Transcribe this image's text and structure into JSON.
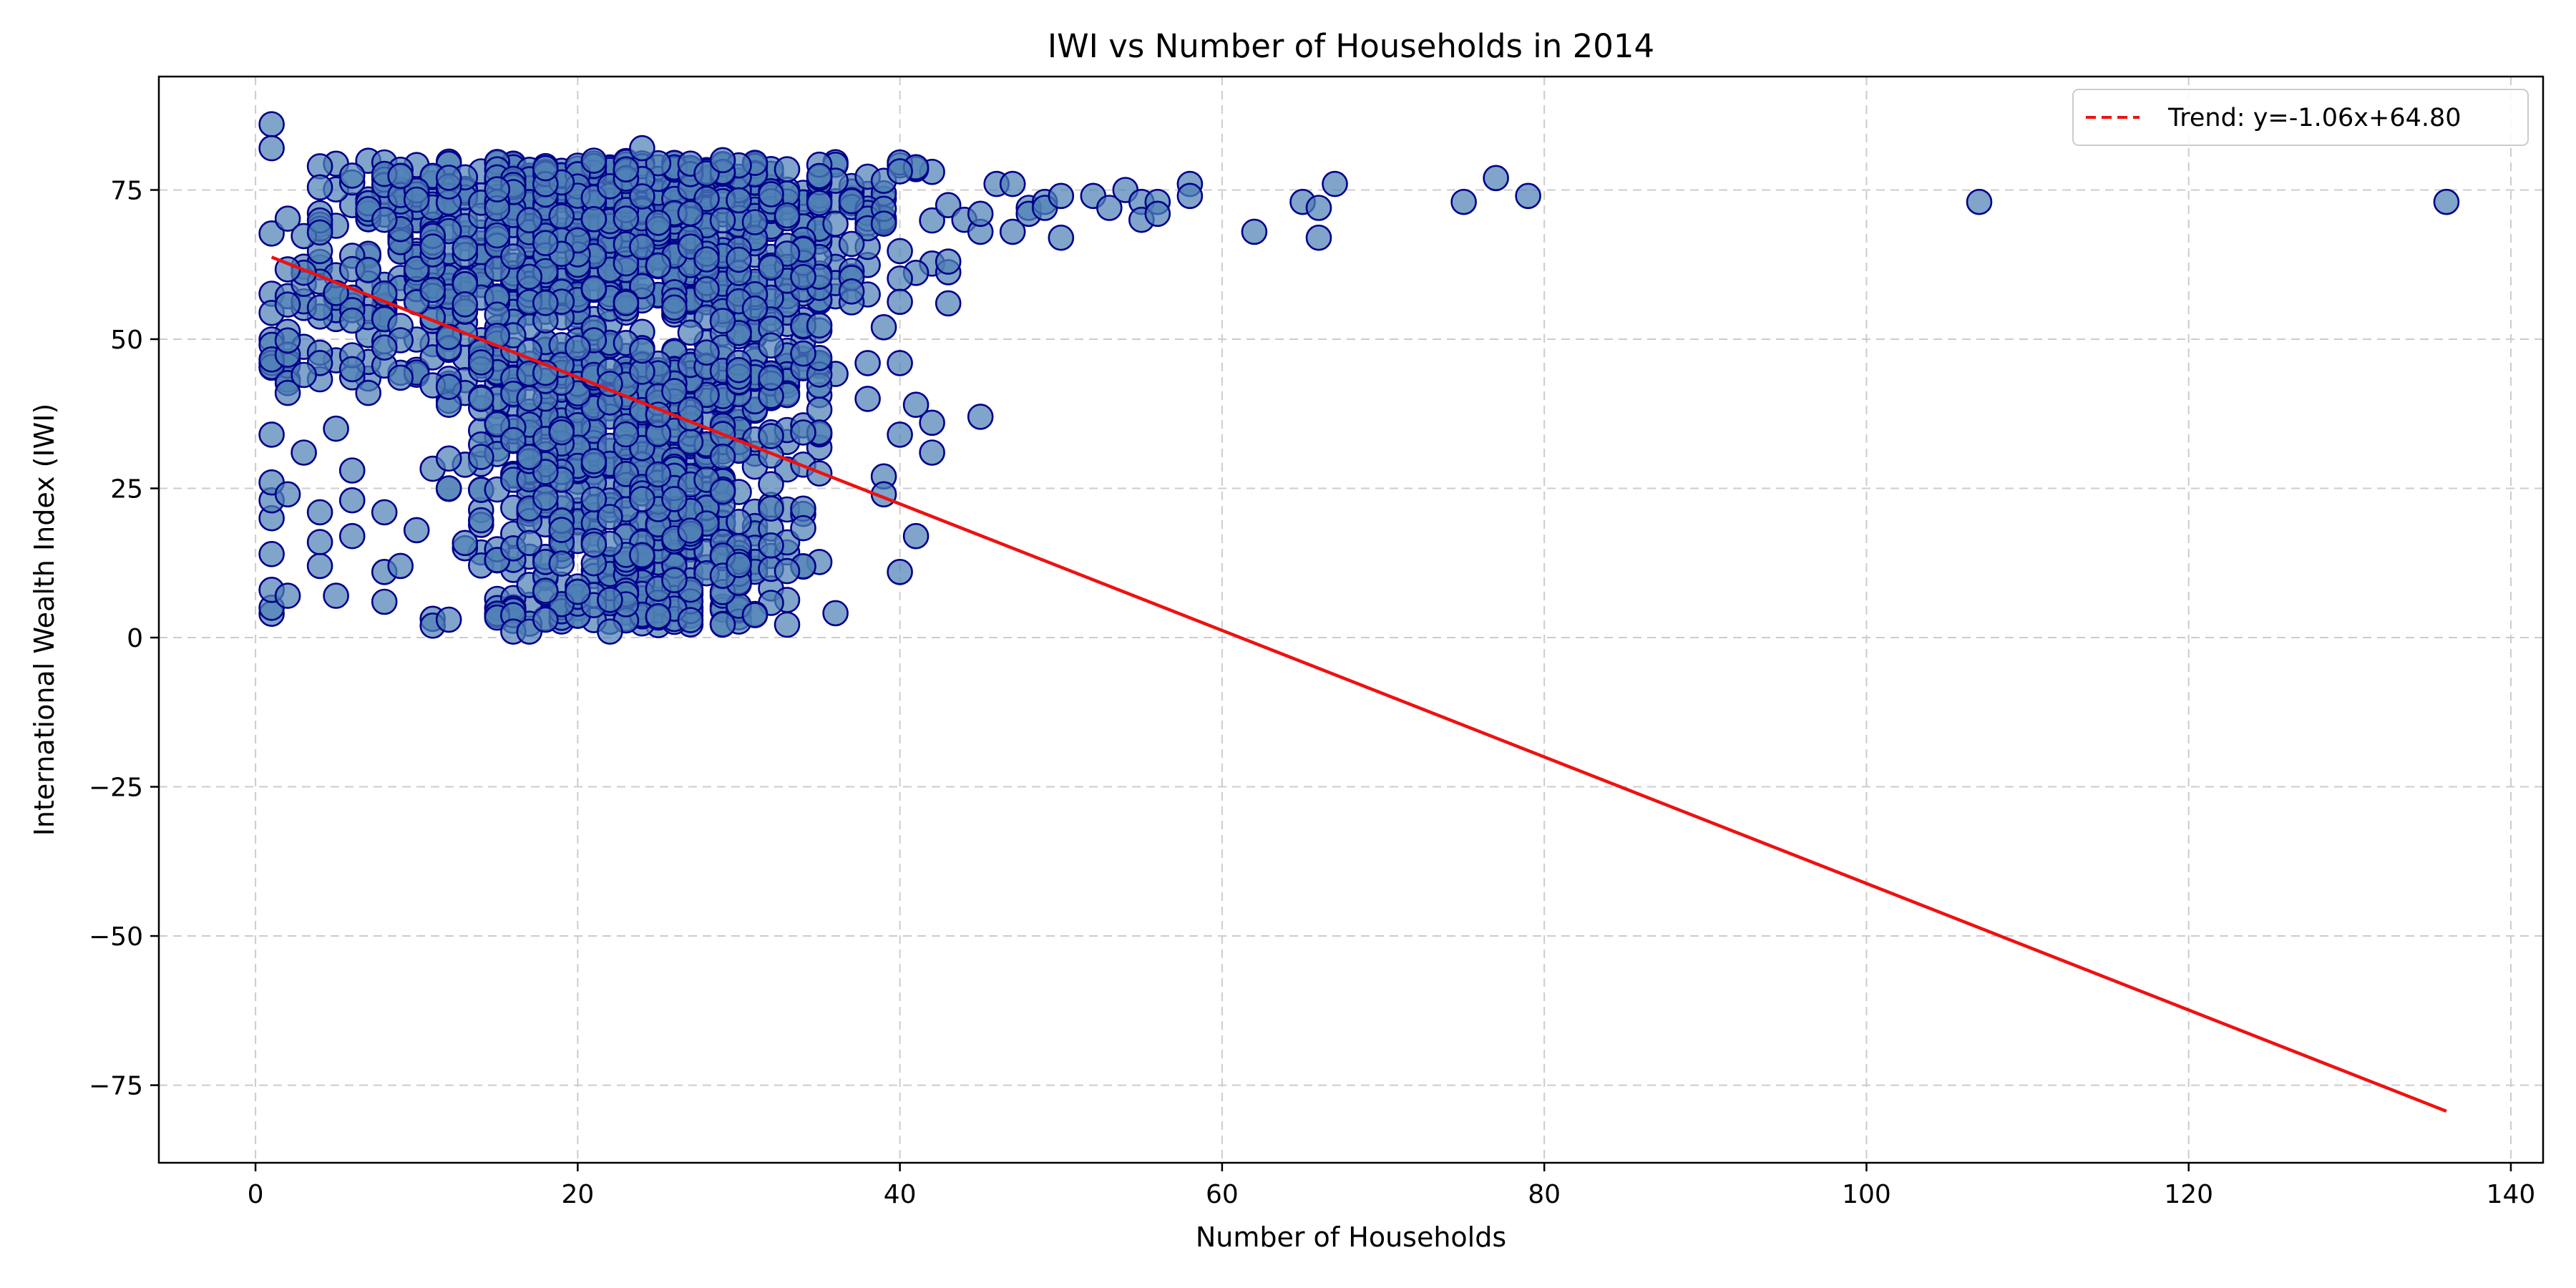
{
  "chart_data": {
    "type": "scatter",
    "title": "IWI vs Number of Households in 2014",
    "xlabel": "Number of Households",
    "ylabel": "International Wealth Index (IWI)",
    "xlim": [
      -6,
      142
    ],
    "ylim": [
      -88,
      94
    ],
    "xticks": [
      0,
      20,
      40,
      60,
      80,
      100,
      120,
      140
    ],
    "yticks": [
      -75,
      -50,
      -25,
      0,
      25,
      50,
      75
    ],
    "grid": true,
    "legend_position": "top-right",
    "colors": {
      "marker_fill": "#4f81b5",
      "marker_edge": "#00008b",
      "trend": "#ee1111",
      "grid": "#cccccc"
    },
    "trend": {
      "label": "Trend: y=-1.06x+64.80",
      "slope": -1.06,
      "intercept": 64.8,
      "x_range": [
        1,
        136
      ]
    },
    "outliers": {
      "x": [
        44,
        45,
        45,
        46,
        47,
        47,
        48,
        48,
        49,
        49,
        50,
        50,
        52,
        53,
        54,
        55,
        55,
        56,
        56,
        58,
        58,
        62,
        65,
        66,
        66,
        67,
        75,
        77,
        79,
        107,
        136
      ],
      "y": [
        70,
        68,
        71,
        76,
        76,
        68,
        72,
        71,
        73,
        72,
        74,
        67,
        74,
        72,
        75,
        73,
        70,
        73,
        71,
        76,
        74,
        68,
        73,
        72,
        67,
        76,
        73,
        77,
        74,
        73,
        73
      ]
    },
    "dense_cloud": {
      "x_range": [
        1,
        43
      ],
      "y_range": [
        1,
        86
      ],
      "point_count": 1800
    }
  }
}
